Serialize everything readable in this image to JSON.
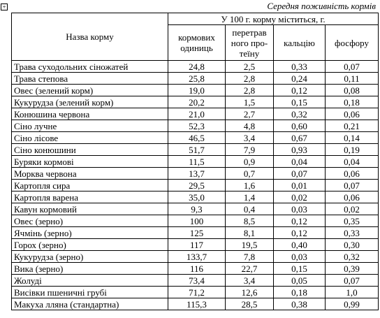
{
  "caption": "Середня поживність кормів",
  "table": {
    "name_header": "Назва корму",
    "group_header": "У 100 г. корму міститься, г.",
    "columns": [
      [
        "кормових",
        "одиниць"
      ],
      [
        "перетрав",
        "ного про-",
        "теїну"
      ],
      [
        "кальцію"
      ],
      [
        "фосфору"
      ]
    ],
    "rows": [
      [
        "Трава суходольних сіножатей",
        "24,8",
        "2,5",
        "0,33",
        "0,07"
      ],
      [
        "Трава степова",
        "25,8",
        "2,8",
        "0,24",
        "0,11"
      ],
      [
        "Овес (зелений корм)",
        "19,0",
        "2,8",
        "0,12",
        "0,08"
      ],
      [
        "Кукурудза (зелений корм)",
        "20,2",
        "1,5",
        "0,15",
        "0,18"
      ],
      [
        "Конюшина червона",
        "21,0",
        "2,7",
        "0,32",
        "0,06"
      ],
      [
        "Сіно лучне",
        "52,3",
        "4,8",
        "0,60",
        "0,21"
      ],
      [
        "Сіно лісове",
        "46,5",
        "3,4",
        "0,67",
        "0,14"
      ],
      [
        "Сіно конюшини",
        "51,7",
        "7,9",
        "0,93",
        "0,19"
      ],
      [
        "Буряки кормові",
        "11,5",
        "0,9",
        "0,04",
        "0,04"
      ],
      [
        "Морква червона",
        "13,7",
        "0,7",
        "0,07",
        "0,06"
      ],
      [
        "Картопля сира",
        "29,5",
        "1,6",
        "0,01",
        "0,07"
      ],
      [
        "Картопля варена",
        "35,0",
        "1,4",
        "0,02",
        "0,06"
      ],
      [
        "Кавун кормовий",
        "9,3",
        "0,4",
        "0,03",
        "0,02"
      ],
      [
        "Овес (зерно)",
        "100",
        "8,5",
        "0,12",
        "0,35"
      ],
      [
        "Ячмінь (зерно)",
        "125",
        "8,1",
        "0,12",
        "0,33"
      ],
      [
        "Горох (зерно)",
        "117",
        "19,5",
        "0,40",
        "0,30"
      ],
      [
        "Кукурудза (зерно)",
        "133,7",
        "7,8",
        "0,03",
        "0,32"
      ],
      [
        "Вика (зерно)",
        "116",
        "22,7",
        "0,15",
        "0,39"
      ],
      [
        "Жолуді",
        "73,4",
        "3,4",
        "0,05",
        "0,07"
      ],
      [
        "Висівки пшеничні грубі",
        "71,2",
        "12,6",
        "0,18",
        "1,0"
      ],
      [
        "Макуха лляна (стандартна)",
        "115,3",
        "28,5",
        "0,38",
        "0,99"
      ]
    ]
  }
}
